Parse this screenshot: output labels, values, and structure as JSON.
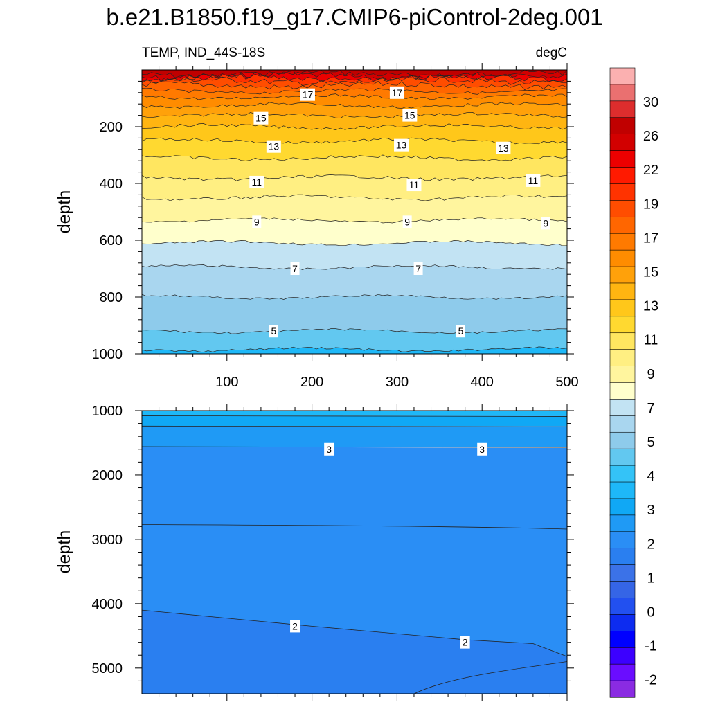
{
  "title": "b.e21.B1850.f19_g17.CMIP6-piControl-2deg.001",
  "chart_data": [
    {
      "type": "contour",
      "variable": "TEMP, IND_44S-18S",
      "units": "degC",
      "ylabel": "depth",
      "xlim": [
        0,
        500
      ],
      "ylim": [
        0,
        1000
      ],
      "y_reversed": true,
      "x_ticks": [
        "100",
        "200",
        "300",
        "400",
        "500"
      ],
      "y_ticks": [
        "200",
        "400",
        "600",
        "800",
        "1000"
      ],
      "x_tick_values": [
        100,
        200,
        300,
        400,
        500
      ],
      "y_tick_values": [
        200,
        400,
        600,
        800,
        1000
      ],
      "isotherms": [
        {
          "value": 28,
          "depth": 15
        },
        {
          "value": 26,
          "depth": 22
        },
        {
          "value": 22,
          "depth": 30
        },
        {
          "value": 20,
          "depth": 40
        },
        {
          "value": 19,
          "depth": 55
        },
        {
          "value": 18,
          "depth": 75
        },
        {
          "value": 17,
          "depth": 95
        },
        {
          "value": 16,
          "depth": 125
        },
        {
          "value": 15,
          "depth": 160
        },
        {
          "value": 14,
          "depth": 200
        },
        {
          "value": 13,
          "depth": 250
        },
        {
          "value": 12,
          "depth": 310
        },
        {
          "value": 11,
          "depth": 380
        },
        {
          "value": 10,
          "depth": 450
        },
        {
          "value": 9,
          "depth": 530
        },
        {
          "value": 8,
          "depth": 610
        },
        {
          "value": 7,
          "depth": 695
        },
        {
          "value": 6,
          "depth": 800
        },
        {
          "value": 5,
          "depth": 920
        },
        {
          "value": 4,
          "depth": 985
        }
      ],
      "labels": [
        {
          "text": "17",
          "x": 195,
          "y": 87
        },
        {
          "text": "17",
          "x": 300,
          "y": 80
        },
        {
          "text": "15",
          "x": 140,
          "y": 170
        },
        {
          "text": "15",
          "x": 315,
          "y": 160
        },
        {
          "text": "13",
          "x": 155,
          "y": 270
        },
        {
          "text": "13",
          "x": 305,
          "y": 265
        },
        {
          "text": "13",
          "x": 425,
          "y": 275
        },
        {
          "text": "11",
          "x": 135,
          "y": 395
        },
        {
          "text": "11",
          "x": 320,
          "y": 405
        },
        {
          "text": "11",
          "x": 460,
          "y": 390
        },
        {
          "text": "9",
          "x": 135,
          "y": 535
        },
        {
          "text": "9",
          "x": 312,
          "y": 535
        },
        {
          "text": "9",
          "x": 475,
          "y": 540
        },
        {
          "text": "7",
          "x": 180,
          "y": 700
        },
        {
          "text": "7",
          "x": 325,
          "y": 700
        },
        {
          "text": "5",
          "x": 155,
          "y": 920
        },
        {
          "text": "5",
          "x": 375,
          "y": 920
        }
      ]
    },
    {
      "type": "contour",
      "variable": "TEMP, IND_44S-18S",
      "ylabel": "depth",
      "xlim": [
        0,
        500
      ],
      "ylim": [
        1000,
        5400
      ],
      "y_reversed": true,
      "y_ticks": [
        "1000",
        "2000",
        "3000",
        "4000",
        "5000"
      ],
      "y_tick_values": [
        1000,
        2000,
        3000,
        4000,
        5000
      ],
      "regions": [
        {
          "value": 3.75,
          "depth_top": 1000,
          "depth_bottom": 1080
        },
        {
          "value": 3.25,
          "depth_top": 1080,
          "depth_bottom": 1240
        },
        {
          "value": 2.75,
          "depth_top": 1240,
          "depth_bottom": 1560
        },
        {
          "value": 2.25,
          "depth_top": 1560,
          "depth_bottom": 4100
        },
        {
          "value": 1.75,
          "depth_top": 4100,
          "depth_bottom": 5400
        }
      ],
      "labels": [
        {
          "text": "3",
          "x": 220,
          "y": 1600
        },
        {
          "text": "3",
          "x": 400,
          "y": 1600
        },
        {
          "text": "2",
          "x": 180,
          "y": 4350
        },
        {
          "text": "2",
          "x": 380,
          "y": 4600
        }
      ]
    },
    {
      "type": "colorbar",
      "levels": [
        -2.5,
        -2,
        -1.5,
        -1,
        -0.5,
        0,
        0.5,
        1,
        1.5,
        2,
        2.5,
        3,
        3.5,
        4,
        4.5,
        5,
        6,
        7,
        8,
        9,
        10,
        11,
        12,
        13,
        14,
        15,
        16,
        17,
        18,
        19,
        20,
        22,
        24,
        26,
        28,
        30
      ],
      "tick_labels": [
        "-2",
        "-1",
        "0",
        "1",
        "2",
        "3",
        "4",
        "5",
        "7",
        "9",
        "11",
        "13",
        "15",
        "17",
        "19",
        "22",
        "26",
        "30"
      ],
      "colors": [
        "#b4b4b4",
        "#8a2be2",
        "#6a0dff",
        "#3c00ff",
        "#0000ff",
        "#0d2cf0",
        "#2250f0",
        "#3565e6",
        "#3b72e8",
        "#2a7ff0",
        "#2a8ef5",
        "#1f9af5",
        "#10a8f5",
        "#1eb8f8",
        "#34c3f7",
        "#62c8f0",
        "#8ecbeb",
        "#a9d6ef",
        "#c2e3f3",
        "#ffffcc",
        "#fff59e",
        "#ffef82",
        "#ffe660",
        "#ffd930",
        "#ffc71a",
        "#ffb511",
        "#ffa10a",
        "#ff8c00",
        "#ff7a00",
        "#ff6600",
        "#ff4d00",
        "#ff3300",
        "#ff1a00",
        "#ec0000",
        "#d20000",
        "#c00000",
        "#dd2d2d",
        "#ea7070",
        "#fbb0b0"
      ]
    }
  ]
}
